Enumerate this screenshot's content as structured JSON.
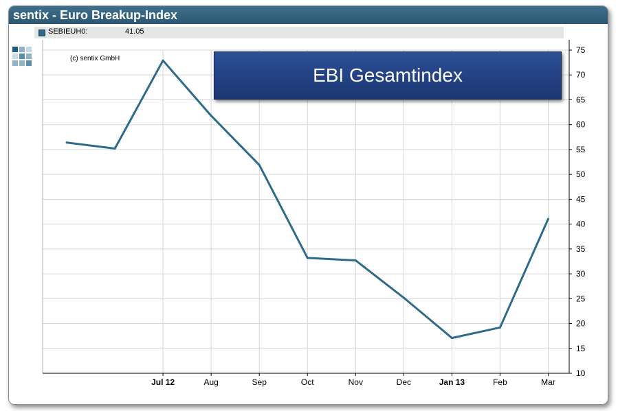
{
  "window": {
    "title": "sentix - Euro Breakup-Index"
  },
  "legend": {
    "series_label": "SEBIEUH0:",
    "series_value": "41.05",
    "color": "#2e6b8a"
  },
  "copyright": "(c) sentix GmbH",
  "banner": {
    "text": "EBI Gesamtindex"
  },
  "chart_data": {
    "type": "line",
    "title": "",
    "xlabel": "",
    "ylabel": "",
    "ylim": [
      10,
      75
    ],
    "y_ticks": [
      10,
      15,
      20,
      25,
      30,
      35,
      40,
      45,
      50,
      55,
      60,
      65,
      70,
      75
    ],
    "x_tick_labels": [
      {
        "label": "Jul 12",
        "bold": true
      },
      {
        "label": "Aug",
        "bold": false
      },
      {
        "label": "Sep",
        "bold": false
      },
      {
        "label": "Oct",
        "bold": false
      },
      {
        "label": "Nov",
        "bold": false
      },
      {
        "label": "Dec",
        "bold": false
      },
      {
        "label": "Jan 13",
        "bold": true
      },
      {
        "label": "Feb",
        "bold": false
      },
      {
        "label": "Mar",
        "bold": false
      }
    ],
    "series": [
      {
        "color": "#2e6b8a",
        "x": [
          "2012-05",
          "2012-06",
          "2012-07",
          "2012-08",
          "2012-09",
          "2012-10",
          "2012-11",
          "2012-12",
          "2013-01",
          "2013-02",
          "2013-03"
        ],
        "values": [
          56.4,
          55.2,
          72.9,
          61.8,
          51.9,
          33.2,
          32.7,
          25.2,
          17.1,
          19.2,
          41.05
        ]
      }
    ],
    "grid": true,
    "y_axis_side": "right",
    "legend": "top-left"
  }
}
